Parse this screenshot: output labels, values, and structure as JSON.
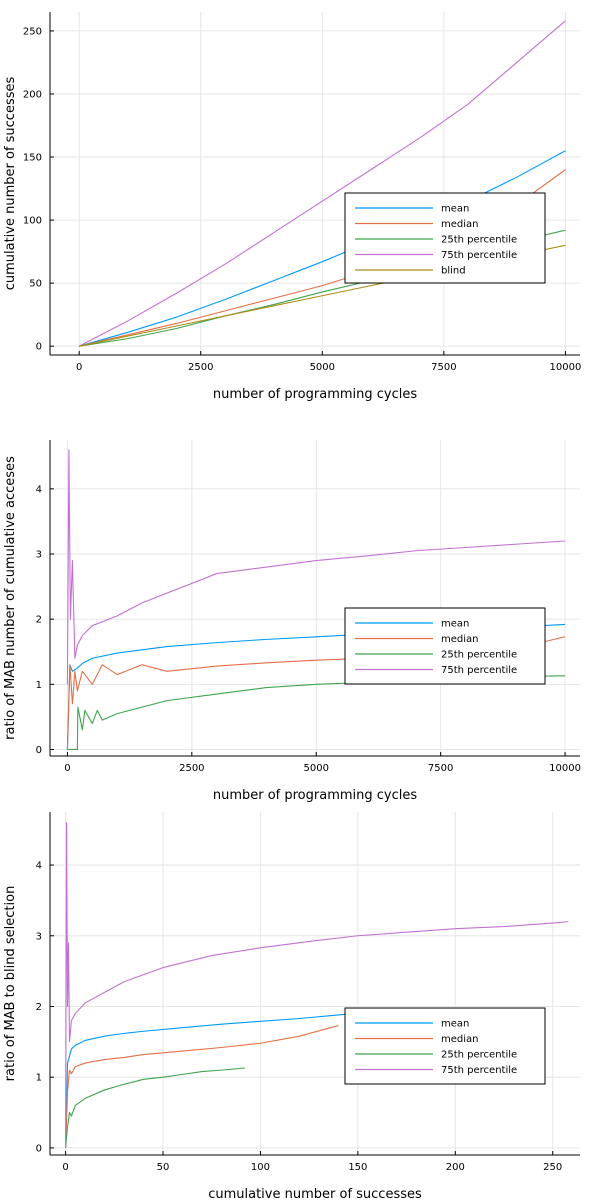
{
  "colors": {
    "mean": "#009AFA",
    "median": "#E36F47",
    "p25": "#3EA44E",
    "p75": "#C271D2",
    "blind": "#AC8D18"
  },
  "chart_data": [
    {
      "type": "line",
      "xlabel": "number of programming cycles",
      "ylabel": "cumulative number of successes",
      "xlim": [
        -600,
        10300
      ],
      "ylim": [
        -7,
        265
      ],
      "xticks": [
        0,
        2500,
        5000,
        7500,
        10000
      ],
      "yticks": [
        0,
        50,
        100,
        150,
        200,
        250
      ],
      "legend": "center-right",
      "grid": true,
      "series": [
        {
          "name": "mean",
          "color_key": "mean",
          "x": [
            0,
            1000,
            2000,
            3000,
            4000,
            5000,
            6000,
            7000,
            8000,
            9000,
            10000
          ],
          "y": [
            0,
            11,
            23,
            37,
            52,
            67,
            83,
            99,
            115,
            134,
            155
          ]
        },
        {
          "name": "median",
          "color_key": "median",
          "x": [
            0,
            1000,
            2000,
            3000,
            4000,
            5000,
            6000,
            7000,
            8000,
            9000,
            10000
          ],
          "y": [
            0,
            9,
            18,
            28,
            38,
            48,
            60,
            72,
            90,
            112,
            140
          ]
        },
        {
          "name": "25th percentile",
          "color_key": "p25",
          "x": [
            0,
            1000,
            2000,
            3000,
            4000,
            5000,
            6000,
            7000,
            8000,
            9000,
            10000
          ],
          "y": [
            0,
            6,
            14,
            24,
            33,
            43,
            52,
            62,
            72,
            83,
            92
          ]
        },
        {
          "name": "75th percentile",
          "color_key": "p75",
          "x": [
            0,
            1000,
            2000,
            3000,
            4000,
            5000,
            6000,
            7000,
            8000,
            9000,
            10000
          ],
          "y": [
            0,
            20,
            42,
            65,
            90,
            115,
            140,
            165,
            192,
            225,
            258
          ]
        },
        {
          "name": "blind",
          "color_key": "blind",
          "x": [
            0,
            1000,
            2000,
            3000,
            4000,
            5000,
            6000,
            7000,
            8000,
            9000,
            10000
          ],
          "y": [
            0,
            8,
            16,
            24,
            32,
            40,
            48,
            56,
            64,
            72,
            80
          ]
        }
      ]
    },
    {
      "type": "line",
      "xlabel": "number of programming cycles",
      "ylabel": "ratio of MAB number of cumulative acceses",
      "xlim": [
        -350,
        10300
      ],
      "ylim": [
        -0.1,
        4.75
      ],
      "xticks": [
        0,
        2500,
        5000,
        7500,
        10000
      ],
      "yticks": [
        0,
        1,
        2,
        3,
        4
      ],
      "legend": "center-right",
      "grid": true,
      "series": [
        {
          "name": "mean",
          "color_key": "mean",
          "x": [
            0,
            50,
            100,
            200,
            300,
            500,
            1000,
            1500,
            2000,
            3000,
            4000,
            5000,
            6000,
            7000,
            8000,
            9000,
            10000
          ],
          "y": [
            0,
            1.3,
            1.2,
            1.25,
            1.32,
            1.4,
            1.48,
            1.53,
            1.58,
            1.64,
            1.69,
            1.73,
            1.77,
            1.81,
            1.85,
            1.88,
            1.92
          ]
        },
        {
          "name": "median",
          "color_key": "median",
          "x": [
            0,
            50,
            100,
            150,
            200,
            300,
            500,
            700,
            1000,
            1500,
            2000,
            3000,
            4000,
            5000,
            6000,
            7000,
            8000,
            9000,
            10000
          ],
          "y": [
            0,
            1.3,
            0.7,
            1.2,
            0.9,
            1.2,
            1.0,
            1.3,
            1.15,
            1.3,
            1.2,
            1.28,
            1.33,
            1.37,
            1.4,
            1.45,
            1.48,
            1.55,
            1.73
          ]
        },
        {
          "name": "25th percentile",
          "color_key": "p25",
          "x": [
            0,
            200,
            210,
            300,
            350,
            500,
            600,
            700,
            1000,
            1500,
            2000,
            3000,
            4000,
            5000,
            6000,
            7000,
            8000,
            9000,
            10000
          ],
          "y": [
            0,
            0,
            0.65,
            0.3,
            0.6,
            0.4,
            0.6,
            0.45,
            0.55,
            0.65,
            0.75,
            0.85,
            0.95,
            1.0,
            1.03,
            1.07,
            1.1,
            1.12,
            1.13
          ]
        },
        {
          "name": "75th percentile",
          "color_key": "p75",
          "x": [
            0,
            30,
            60,
            100,
            150,
            200,
            300,
            500,
            1000,
            1500,
            2000,
            2500,
            3000,
            4000,
            5000,
            6000,
            7000,
            8000,
            9000,
            10000
          ],
          "y": [
            1.0,
            4.6,
            2.0,
            2.9,
            1.4,
            1.6,
            1.75,
            1.9,
            2.05,
            2.25,
            2.4,
            2.55,
            2.7,
            2.8,
            2.9,
            2.97,
            3.05,
            3.1,
            3.15,
            3.2
          ]
        }
      ]
    },
    {
      "type": "line",
      "xlabel": "cumulative number of successes",
      "ylabel": "ratio of MAB to blind selection",
      "xlim": [
        -8,
        264
      ],
      "ylim": [
        -0.1,
        4.75
      ],
      "xticks": [
        0,
        50,
        100,
        150,
        200,
        250
      ],
      "yticks": [
        0,
        1,
        2,
        3,
        4
      ],
      "legend": "center-right",
      "grid": true,
      "series": [
        {
          "name": "mean",
          "color_key": "mean",
          "x": [
            0,
            1,
            3,
            5,
            10,
            20,
            30,
            40,
            60,
            80,
            100,
            120,
            140,
            155
          ],
          "y": [
            0,
            1.2,
            1.4,
            1.45,
            1.52,
            1.58,
            1.62,
            1.65,
            1.7,
            1.75,
            1.79,
            1.83,
            1.88,
            1.92
          ]
        },
        {
          "name": "median",
          "color_key": "median",
          "x": [
            0,
            1,
            2,
            3,
            5,
            10,
            20,
            30,
            40,
            60,
            80,
            100,
            120,
            140
          ],
          "y": [
            0,
            0.8,
            1.1,
            1.05,
            1.15,
            1.2,
            1.25,
            1.28,
            1.32,
            1.37,
            1.42,
            1.48,
            1.58,
            1.73
          ]
        },
        {
          "name": "25th percentile",
          "color_key": "p25",
          "x": [
            0,
            1,
            2,
            3,
            5,
            10,
            20,
            30,
            40,
            50,
            60,
            70,
            80,
            92
          ],
          "y": [
            0,
            0.3,
            0.5,
            0.45,
            0.6,
            0.7,
            0.82,
            0.9,
            0.97,
            1.0,
            1.04,
            1.08,
            1.1,
            1.13
          ]
        },
        {
          "name": "75th percentile",
          "color_key": "p75",
          "x": [
            0,
            0.5,
            1,
            1.5,
            2,
            3,
            5,
            10,
            20,
            30,
            50,
            75,
            100,
            125,
            150,
            175,
            200,
            225,
            250,
            258
          ],
          "y": [
            0,
            4.6,
            2.0,
            2.9,
            1.5,
            1.8,
            1.9,
            2.05,
            2.2,
            2.35,
            2.55,
            2.72,
            2.83,
            2.92,
            3.0,
            3.05,
            3.1,
            3.13,
            3.18,
            3.2
          ]
        }
      ]
    }
  ]
}
